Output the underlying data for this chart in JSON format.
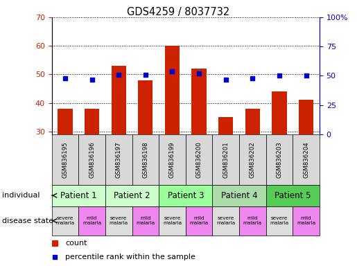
{
  "title": "GDS4259 / 8037732",
  "samples": [
    "GSM836195",
    "GSM836196",
    "GSM836197",
    "GSM836198",
    "GSM836199",
    "GSM836200",
    "GSM836201",
    "GSM836202",
    "GSM836203",
    "GSM836204"
  ],
  "counts": [
    38,
    38,
    53,
    48,
    60,
    52,
    35,
    38,
    44,
    41
  ],
  "percentile_ranks": [
    48,
    47,
    51,
    51,
    54,
    52,
    47,
    48,
    50,
    50
  ],
  "ylim_left": [
    29,
    70
  ],
  "ylim_right": [
    0,
    100
  ],
  "yticks_left": [
    30,
    40,
    50,
    60,
    70
  ],
  "yticks_right": [
    0,
    25,
    50,
    75,
    100
  ],
  "yticklabels_right": [
    "0",
    "25",
    "50",
    "75",
    "100%"
  ],
  "patients": [
    {
      "label": "Patient 1",
      "cols": [
        0,
        1
      ],
      "color": "#ccffcc"
    },
    {
      "label": "Patient 2",
      "cols": [
        2,
        3
      ],
      "color": "#ccffcc"
    },
    {
      "label": "Patient 3",
      "cols": [
        4,
        5
      ],
      "color": "#99ff99"
    },
    {
      "label": "Patient 4",
      "cols": [
        6,
        7
      ],
      "color": "#aaddaa"
    },
    {
      "label": "Patient 5",
      "cols": [
        8,
        9
      ],
      "color": "#55cc55"
    }
  ],
  "disease_states": [
    {
      "label": "severe\nmalaria",
      "col": 0,
      "color": "#dddddd"
    },
    {
      "label": "mild\nmalaria",
      "col": 1,
      "color": "#ee88ee"
    },
    {
      "label": "severe\nmalaria",
      "col": 2,
      "color": "#dddddd"
    },
    {
      "label": "mild\nmalaria",
      "col": 3,
      "color": "#ee88ee"
    },
    {
      "label": "severe\nmalaria",
      "col": 4,
      "color": "#dddddd"
    },
    {
      "label": "mild\nmalaria",
      "col": 5,
      "color": "#ee88ee"
    },
    {
      "label": "severe\nmalaria",
      "col": 6,
      "color": "#dddddd"
    },
    {
      "label": "mild\nmalaria",
      "col": 7,
      "color": "#ee88ee"
    },
    {
      "label": "severe\nmalaria",
      "col": 8,
      "color": "#dddddd"
    },
    {
      "label": "mild\nmalaria",
      "col": 9,
      "color": "#ee88ee"
    }
  ],
  "bar_color": "#cc2200",
  "dot_color": "#0000cc",
  "grid_color": "#000000",
  "left_axis_color": "#cc2200",
  "right_axis_color": "#0000cc",
  "legend_count_color": "#cc2200",
  "legend_percentile_color": "#0000cc",
  "background_color": "#ffffff",
  "fig_width": 5.15,
  "fig_height": 3.84,
  "dpi": 100
}
